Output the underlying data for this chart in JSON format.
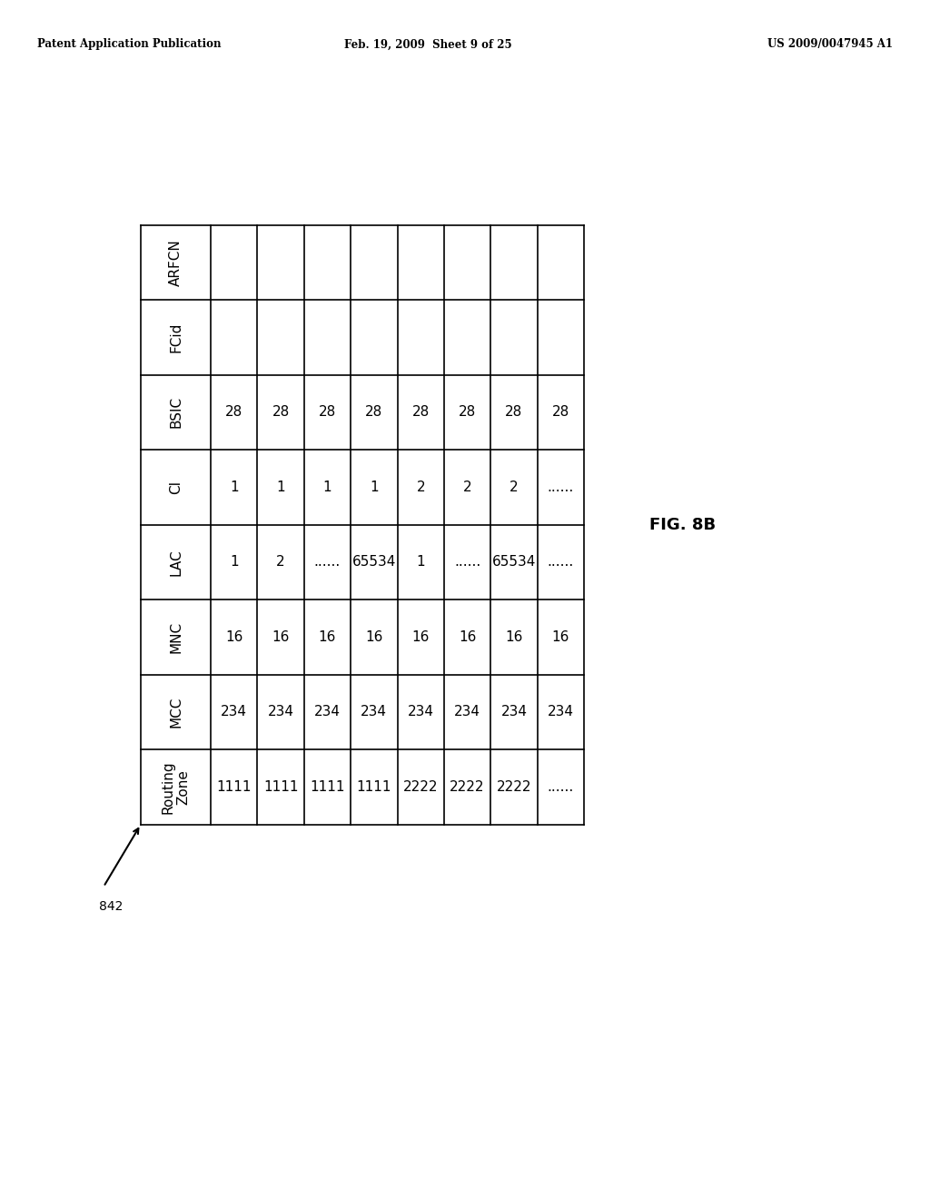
{
  "header_text": {
    "left": "Patent Application Publication",
    "center": "Feb. 19, 2009  Sheet 9 of 25",
    "right": "US 2009/0047945 A1"
  },
  "fig_label": "FIG. 8B",
  "arrow_label": "842",
  "row_headers": [
    "ARFCN",
    "FCid",
    "BSIC",
    "CI",
    "LAC",
    "MNC",
    "MCC",
    "Routing\nZone"
  ],
  "data_cols": [
    [
      "",
      "",
      "28",
      "1",
      "1",
      "16",
      "234",
      "1111"
    ],
    [
      "",
      "",
      "28",
      "1",
      "2",
      "16",
      "234",
      "1111"
    ],
    [
      "",
      "",
      "28",
      "1",
      "......",
      "16",
      "234",
      "1111"
    ],
    [
      "",
      "",
      "28",
      "1",
      "65534",
      "16",
      "234",
      "1111"
    ],
    [
      "",
      "",
      "28",
      "2",
      "1",
      "16",
      "234",
      "2222"
    ],
    [
      "",
      "",
      "28",
      "2",
      "......",
      "16",
      "234",
      "2222"
    ],
    [
      "",
      "",
      "28",
      "2",
      "65534",
      "16",
      "234",
      "2222"
    ],
    [
      "",
      "",
      "28",
      "......",
      "......",
      "16",
      "234",
      "......"
    ]
  ],
  "bg_color": "#ffffff",
  "line_color": "#000000",
  "text_color": "#000000",
  "cell_font_size": 11,
  "header_font_size": 9,
  "table_font_size": 11
}
